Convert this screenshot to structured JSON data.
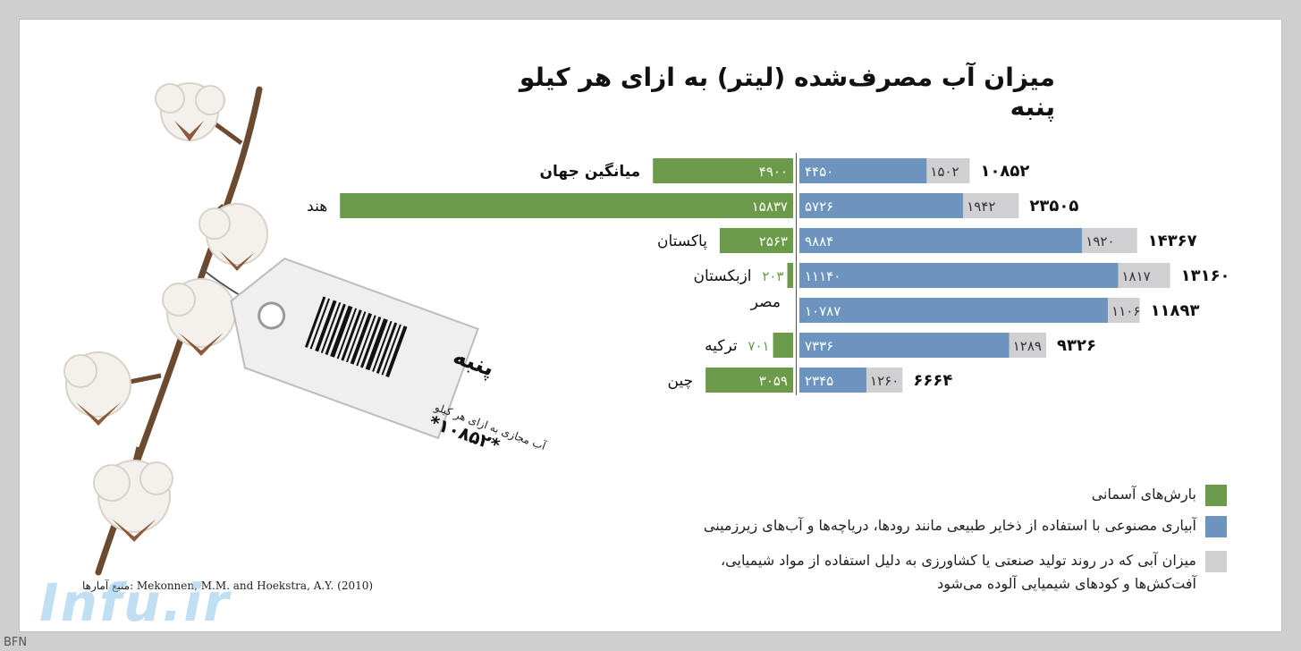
{
  "title": "میزان آب مصرف‌شده (لیتر) به ازای هر کیلو پنبه",
  "colors": {
    "green": "#6b9b4a",
    "blue": "#6d94bf",
    "gray": "#d0d0d2"
  },
  "chart_data": {
    "type": "bar",
    "orientation": "horizontal",
    "stacked": "diverging",
    "categories": [
      "میانگین جهان",
      "هند",
      "پاکستان",
      "ازبکستان",
      "مصر",
      "ترکیه",
      "چین"
    ],
    "series": [
      {
        "color": "#6b9b4a",
        "values": [
          4900,
          15837,
          2563,
          203,
          0,
          701,
          3059
        ],
        "labels": [
          "۴۹۰۰",
          "۱۵۸۳۷",
          "۲۵۶۳",
          "۲۰۳",
          "",
          "۷۰۱",
          "۳۰۵۹"
        ]
      },
      {
        "color": "#6d94bf",
        "values": [
          4450,
          5726,
          9884,
          11140,
          10787,
          7336,
          2345
        ],
        "labels": [
          "۴۴۵۰",
          "۵۷۲۶",
          "۹۸۸۴",
          "۱۱۱۴۰",
          "۱۰۷۸۷",
          "۷۳۳۶",
          "۲۳۴۵"
        ]
      },
      {
        "color": "#d0d0d2",
        "values": [
          1502,
          1942,
          1920,
          1817,
          1106,
          1289,
          1260
        ],
        "labels": [
          "۱۵۰۲",
          "۱۹۴۲",
          "۱۹۲۰",
          "۱۸۱۷",
          "۱۱۰۶",
          "۱۲۸۹",
          "۱۲۶۰"
        ]
      }
    ],
    "totals": [
      "۱۰۸۵۲",
      "۲۳۵۰۵",
      "۱۴۳۶۷",
      "۱۳۱۶۰",
      "۱۱۸۹۳",
      "۹۳۲۶",
      "۶۶۶۴"
    ]
  },
  "legend": [
    {
      "color": "#6b9b4a",
      "text": "بارش‌های آسمانی"
    },
    {
      "color": "#6d94bf",
      "text": "آبیاری مصنوعی با استفاده از ذخایر طبیعی مانند رودها، دریاچه‌ها و آب‌های زیرزمینی"
    },
    {
      "color": "#d0d0d2",
      "text": "میزان آبی که در روند تولید صنعتی یا کشاورزی به دلیل استفاده از مواد شیمیایی، آفت‌کش‌ها و کودهای شیمیایی آلوده می‌شود"
    }
  ],
  "source": "منبع آمارها: Mekonnen, M.M. and Hoekstra, A.Y. (2010)",
  "tag": {
    "label": "پنبه",
    "subtitle": "آب مجازی به ازای هر کیلو",
    "code": "*۱۰۸۵۲*"
  },
  "watermark": "Infu.ir",
  "corner_mark": "BFN"
}
